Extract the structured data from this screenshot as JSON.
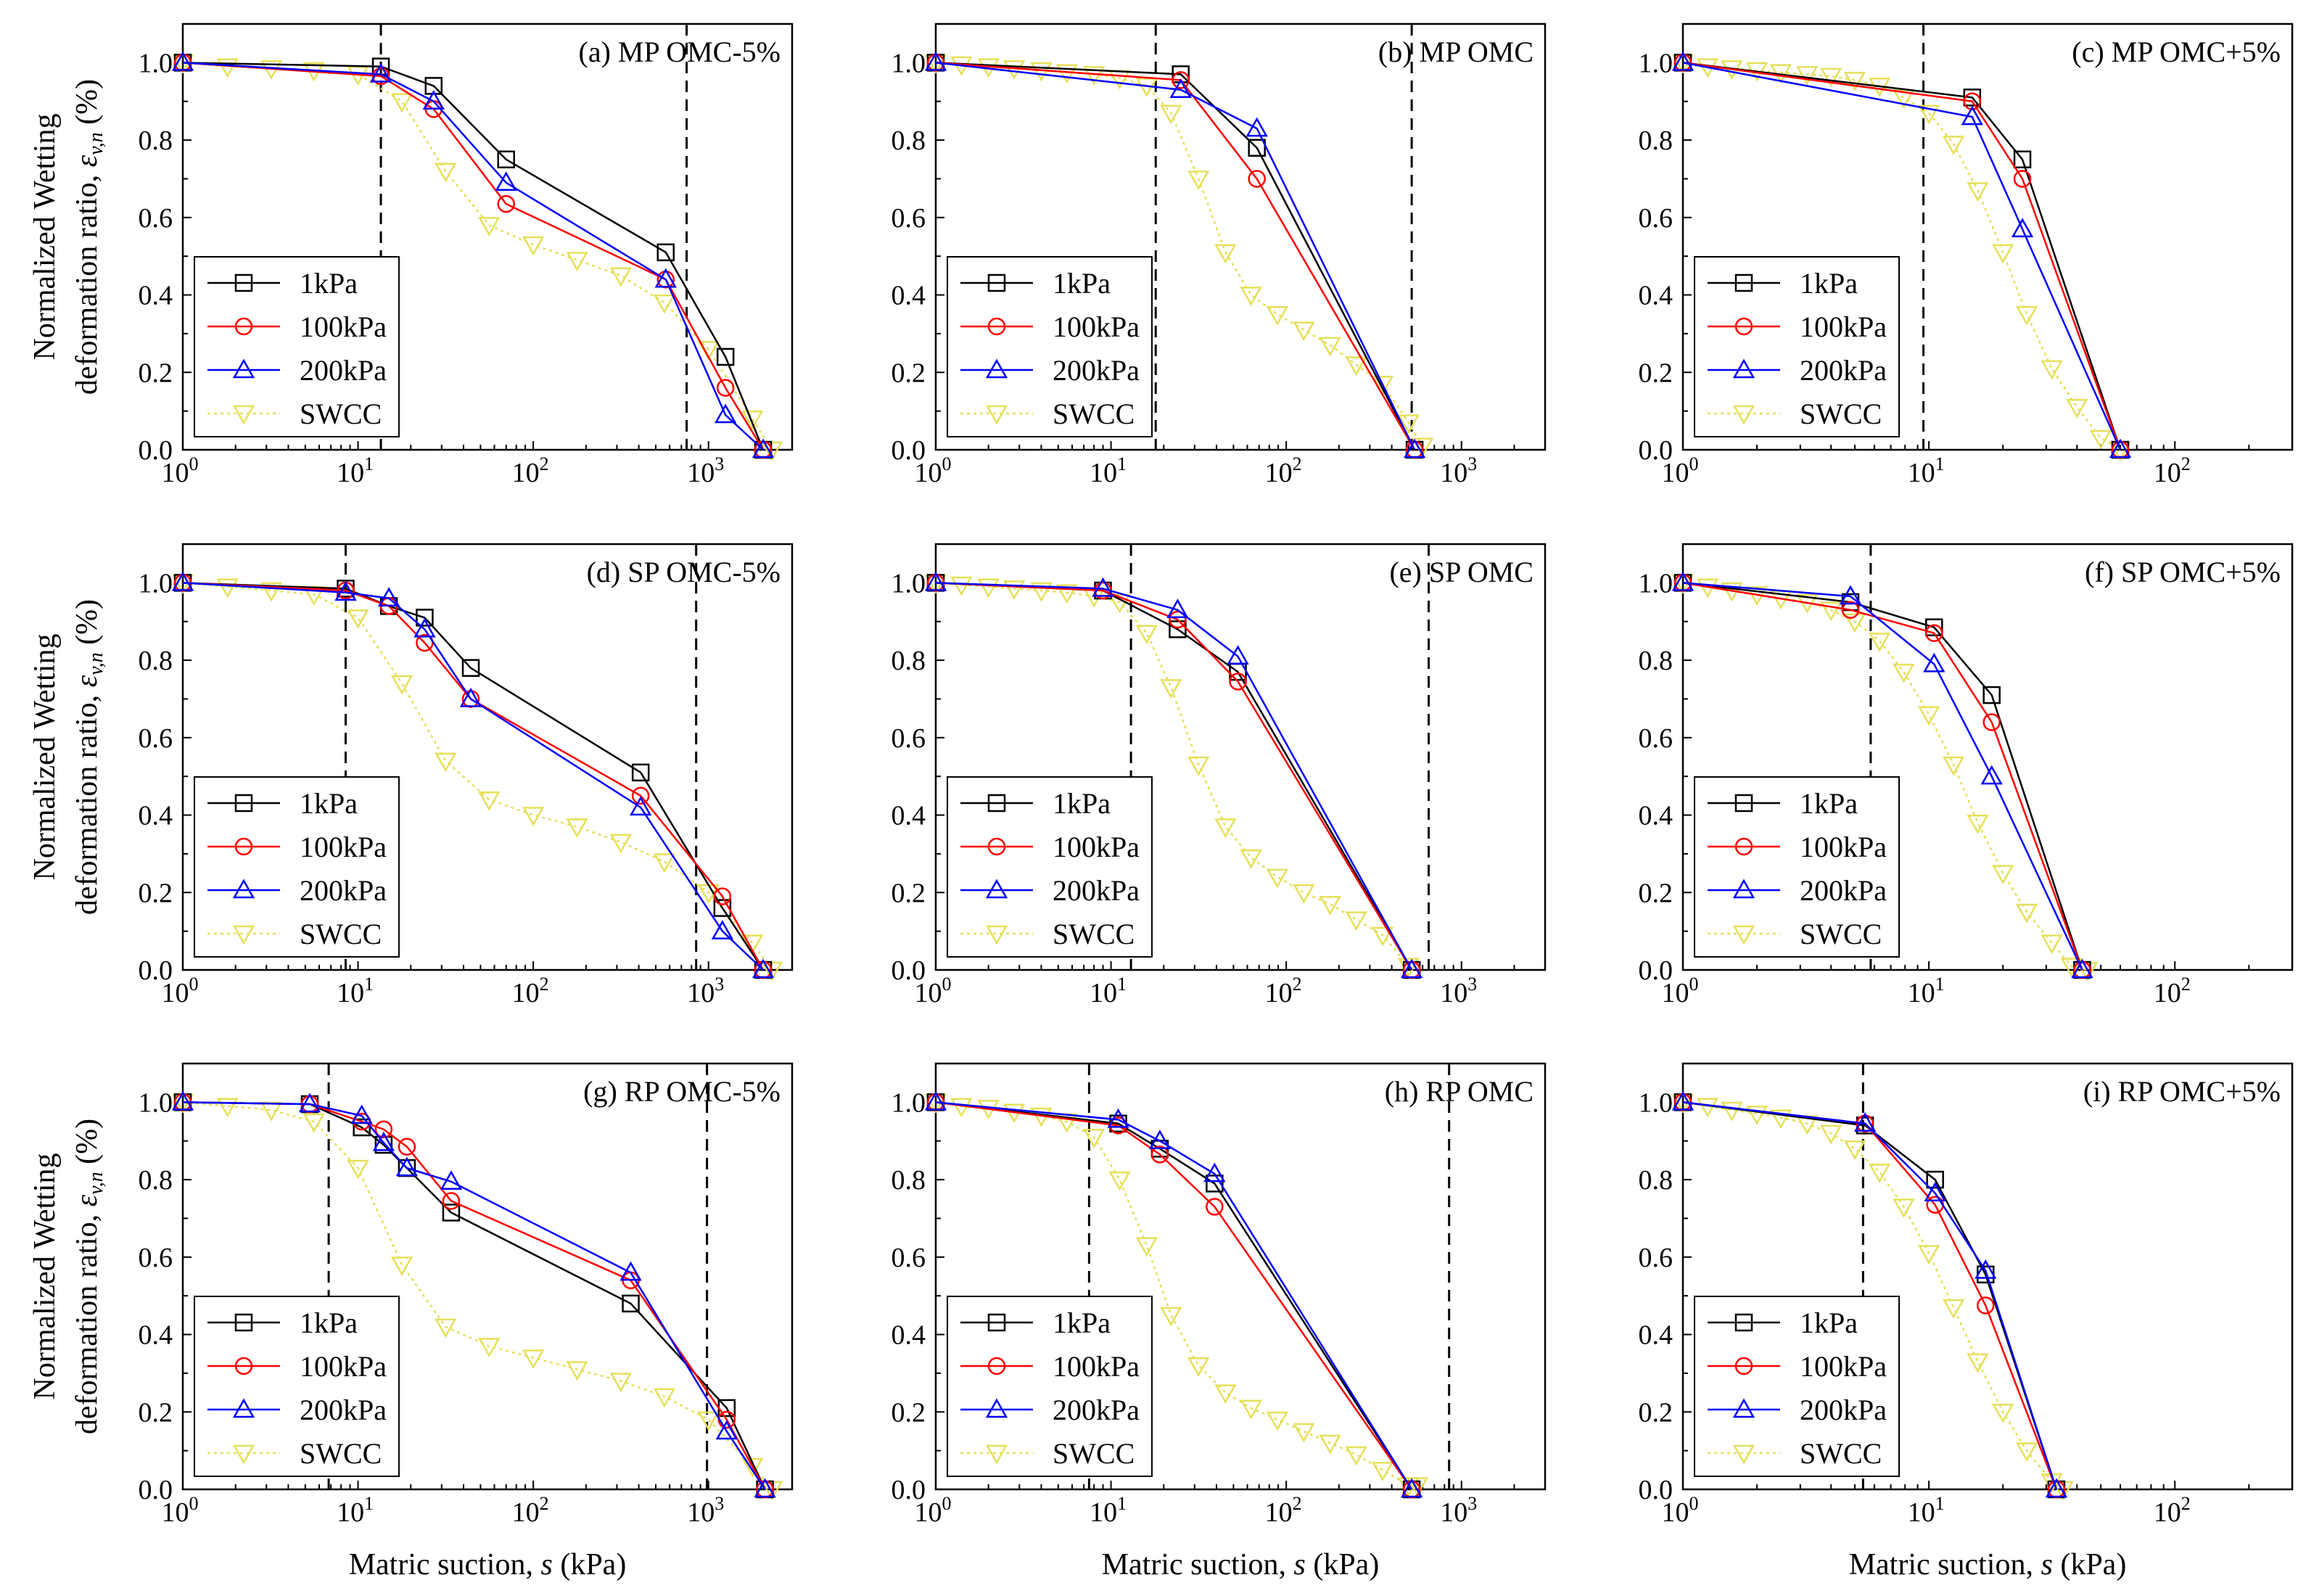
{
  "figure": {
    "ylabel_line1": "Normalized Wetting",
    "ylabel_line2_prefix": "deformation ratio, ",
    "ylabel_symbol": "ε",
    "ylabel_subscript": "v,n",
    "ylabel_unit": " (%)",
    "xlabel_prefix": "Matric suction, ",
    "xlabel_symbol": "s",
    "xlabel_unit": " (kPa)"
  },
  "styles": {
    "1kPa": {
      "color": "#000000",
      "marker": "square",
      "dash": "none"
    },
    "100kPa": {
      "color": "#ff0000",
      "marker": "circle",
      "dash": "none"
    },
    "200kPa": {
      "color": "#0000ff",
      "marker": "triangle-up",
      "dash": "none"
    },
    "SWCC": {
      "color": "#e6e05a",
      "marker": "triangle-down",
      "dash": "dotted"
    }
  },
  "legend_labels": [
    "1kPa",
    "100kPa",
    "200kPa",
    "SWCC"
  ],
  "chart_data": [
    {
      "id": "a",
      "type": "line",
      "title": "(a) MP OMC-5%",
      "xscale": "log",
      "xlim": [
        1,
        3000
      ],
      "xmax_exp": 3,
      "ylim": [
        0,
        1.1
      ],
      "yticks": [
        "0.0",
        "0.2",
        "0.4",
        "0.6",
        "0.8",
        "1.0"
      ],
      "vlines": [
        13.5,
        750
      ],
      "series": [
        {
          "name": "1kPa",
          "x": [
            1,
            13.5,
            27,
            70,
            570,
            1250,
            2050
          ],
          "y": [
            1.0,
            0.99,
            0.94,
            0.75,
            0.51,
            0.24,
            0.0
          ]
        },
        {
          "name": "100kPa",
          "x": [
            1,
            13.5,
            27,
            70,
            570,
            1250,
            2050
          ],
          "y": [
            1.0,
            0.965,
            0.88,
            0.635,
            0.44,
            0.16,
            0.0
          ]
        },
        {
          "name": "200kPa",
          "x": [
            1,
            13.5,
            27,
            70,
            570,
            1250,
            2050
          ],
          "y": [
            1.0,
            0.97,
            0.9,
            0.69,
            0.44,
            0.09,
            0.0
          ]
        },
        {
          "name": "SWCC",
          "x": [
            1,
            1.8,
            3.2,
            5.6,
            10,
            17.8,
            31.6,
            56,
            100,
            178,
            316,
            560,
            1000,
            1780,
            2300
          ],
          "y": [
            1.0,
            0.99,
            0.985,
            0.98,
            0.97,
            0.9,
            0.72,
            0.58,
            0.53,
            0.49,
            0.45,
            0.38,
            0.26,
            0.08,
            0.0
          ]
        }
      ]
    },
    {
      "id": "b",
      "type": "line",
      "title": "(b) MP OMC",
      "xscale": "log",
      "xlim": [
        1,
        3000
      ],
      "xmax_exp": 3,
      "ylim": [
        0,
        1.1
      ],
      "yticks": [
        "0.0",
        "0.2",
        "0.4",
        "0.6",
        "0.8",
        "1.0"
      ],
      "vlines": [
        18,
        520
      ],
      "series": [
        {
          "name": "1kPa",
          "x": [
            1,
            25,
            68,
            540
          ],
          "y": [
            1.0,
            0.97,
            0.78,
            0.0
          ]
        },
        {
          "name": "100kPa",
          "x": [
            1,
            25,
            68,
            540
          ],
          "y": [
            1.0,
            0.955,
            0.7,
            0.0
          ]
        },
        {
          "name": "200kPa",
          "x": [
            1,
            25,
            68,
            540
          ],
          "y": [
            1.0,
            0.93,
            0.83,
            0.0
          ]
        },
        {
          "name": "SWCC",
          "x": [
            1,
            1.4,
            2,
            2.8,
            4,
            5.6,
            8,
            11.2,
            16,
            22,
            31.6,
            45,
            63,
            89,
            126,
            178,
            251,
            355,
            500,
            600
          ],
          "y": [
            1.0,
            0.995,
            0.99,
            0.985,
            0.98,
            0.975,
            0.97,
            0.96,
            0.94,
            0.87,
            0.7,
            0.51,
            0.4,
            0.35,
            0.31,
            0.27,
            0.22,
            0.17,
            0.07,
            0.01
          ]
        }
      ]
    },
    {
      "id": "c",
      "type": "line",
      "title": "(c) MP OMC+5%",
      "xscale": "log",
      "xlim": [
        1,
        300
      ],
      "xmax_exp": 2,
      "ylim": [
        0,
        1.1
      ],
      "yticks": [
        "0.0",
        "0.2",
        "0.4",
        "0.6",
        "0.8",
        "1.0"
      ],
      "vlines": [
        9.5
      ],
      "series": [
        {
          "name": "1kPa",
          "x": [
            1,
            15,
            24,
            60
          ],
          "y": [
            1.0,
            0.91,
            0.75,
            0.0
          ]
        },
        {
          "name": "100kPa",
          "x": [
            1,
            15,
            24,
            60
          ],
          "y": [
            1.0,
            0.9,
            0.7,
            0.0
          ]
        },
        {
          "name": "200kPa",
          "x": [
            1,
            15,
            24,
            60
          ],
          "y": [
            1.0,
            0.86,
            0.57,
            0.0
          ]
        },
        {
          "name": "SWCC",
          "x": [
            1,
            1.26,
            1.58,
            2,
            2.5,
            3.2,
            4,
            5,
            6.3,
            7.9,
            10,
            12.6,
            15.8,
            20,
            25,
            31.6,
            40,
            50,
            60
          ],
          "y": [
            1.0,
            0.99,
            0.985,
            0.98,
            0.975,
            0.97,
            0.965,
            0.955,
            0.94,
            0.91,
            0.87,
            0.79,
            0.67,
            0.51,
            0.35,
            0.21,
            0.11,
            0.03,
            0.0
          ]
        }
      ]
    },
    {
      "id": "d",
      "type": "line",
      "title": "(d) SP OMC-5%",
      "xscale": "log",
      "xlim": [
        1,
        3000
      ],
      "xmax_exp": 3,
      "ylim": [
        0,
        1.1
      ],
      "yticks": [
        "0.0",
        "0.2",
        "0.4",
        "0.6",
        "0.8",
        "1.0"
      ],
      "vlines": [
        8.5,
        850
      ],
      "series": [
        {
          "name": "1kPa",
          "x": [
            1,
            8.5,
            15,
            24,
            44,
            410,
            1200,
            2050
          ],
          "y": [
            1.0,
            0.985,
            0.94,
            0.91,
            0.78,
            0.51,
            0.16,
            0.0
          ]
        },
        {
          "name": "100kPa",
          "x": [
            1,
            8.5,
            15,
            24,
            44,
            410,
            1200,
            2050
          ],
          "y": [
            1.0,
            0.98,
            0.94,
            0.845,
            0.7,
            0.45,
            0.19,
            0.0
          ]
        },
        {
          "name": "200kPa",
          "x": [
            1,
            8.5,
            15,
            24,
            44,
            410,
            1200,
            2050
          ],
          "y": [
            1.0,
            0.975,
            0.96,
            0.88,
            0.7,
            0.42,
            0.1,
            0.0
          ]
        },
        {
          "name": "SWCC",
          "x": [
            1,
            1.8,
            3.2,
            5.6,
            10,
            17.8,
            31.6,
            56,
            100,
            178,
            316,
            560,
            1000,
            1780,
            2300
          ],
          "y": [
            1.0,
            0.99,
            0.98,
            0.97,
            0.91,
            0.74,
            0.54,
            0.44,
            0.4,
            0.37,
            0.33,
            0.28,
            0.2,
            0.07,
            0.0
          ]
        }
      ]
    },
    {
      "id": "e",
      "type": "line",
      "title": "(e) SP OMC",
      "xscale": "log",
      "xlim": [
        1,
        3000
      ],
      "xmax_exp": 3,
      "ylim": [
        0,
        1.1
      ],
      "yticks": [
        "0.0",
        "0.2",
        "0.4",
        "0.6",
        "0.8",
        "1.0"
      ],
      "vlines": [
        13,
        650
      ],
      "series": [
        {
          "name": "1kPa",
          "x": [
            1,
            9,
            24,
            53,
            520
          ],
          "y": [
            1.0,
            0.98,
            0.88,
            0.77,
            0.0
          ]
        },
        {
          "name": "100kPa",
          "x": [
            1,
            9,
            24,
            53,
            520
          ],
          "y": [
            1.0,
            0.98,
            0.905,
            0.745,
            0.0
          ]
        },
        {
          "name": "200kPa",
          "x": [
            1,
            9,
            24,
            53,
            520
          ],
          "y": [
            1.0,
            0.985,
            0.93,
            0.81,
            0.0
          ]
        },
        {
          "name": "SWCC",
          "x": [
            1,
            1.4,
            2,
            2.8,
            4,
            5.6,
            8,
            11.2,
            16,
            22,
            31.6,
            45,
            63,
            89,
            126,
            178,
            251,
            355,
            500
          ],
          "y": [
            1.0,
            0.995,
            0.99,
            0.985,
            0.98,
            0.975,
            0.965,
            0.95,
            0.87,
            0.73,
            0.53,
            0.37,
            0.29,
            0.24,
            0.2,
            0.17,
            0.13,
            0.09,
            0.01
          ]
        }
      ]
    },
    {
      "id": "f",
      "type": "line",
      "title": "(f) SP OMC+5%",
      "xscale": "log",
      "xlim": [
        1,
        300
      ],
      "xmax_exp": 2,
      "ylim": [
        0,
        1.1
      ],
      "yticks": [
        "0.0",
        "0.2",
        "0.4",
        "0.6",
        "0.8",
        "1.0"
      ],
      "vlines": [
        5.8
      ],
      "series": [
        {
          "name": "1kPa",
          "x": [
            1,
            4.8,
            10.5,
            18,
            42
          ],
          "y": [
            1.0,
            0.95,
            0.885,
            0.71,
            0.0
          ]
        },
        {
          "name": "100kPa",
          "x": [
            1,
            4.8,
            10.5,
            18,
            42
          ],
          "y": [
            1.0,
            0.93,
            0.87,
            0.64,
            0.0
          ]
        },
        {
          "name": "200kPa",
          "x": [
            1,
            4.8,
            10.5,
            18,
            42
          ],
          "y": [
            1.0,
            0.965,
            0.79,
            0.5,
            0.0
          ]
        },
        {
          "name": "SWCC",
          "x": [
            1,
            1.26,
            1.58,
            2,
            2.5,
            3.2,
            4,
            5,
            6.3,
            7.9,
            10,
            12.6,
            15.8,
            20,
            25,
            31.6,
            38,
            44
          ],
          "y": [
            1.0,
            0.99,
            0.98,
            0.97,
            0.96,
            0.95,
            0.93,
            0.9,
            0.85,
            0.77,
            0.66,
            0.53,
            0.38,
            0.25,
            0.15,
            0.07,
            0.01,
            0.0
          ]
        }
      ]
    },
    {
      "id": "g",
      "type": "line",
      "title": "(g) RP OMC-5%",
      "xscale": "log",
      "xlim": [
        1,
        3000
      ],
      "xmax_exp": 3,
      "ylim": [
        0,
        1.1
      ],
      "yticks": [
        "0.0",
        "0.2",
        "0.4",
        "0.6",
        "0.8",
        "1.0"
      ],
      "vlines": [
        6.8,
        980
      ],
      "series": [
        {
          "name": "1kPa",
          "x": [
            1,
            5.3,
            10.5,
            14,
            19,
            34,
            360,
            1270,
            2100
          ],
          "y": [
            1.0,
            0.995,
            0.935,
            0.89,
            0.83,
            0.715,
            0.48,
            0.21,
            0.0
          ]
        },
        {
          "name": "100kPa",
          "x": [
            1,
            5.3,
            10.5,
            14,
            19,
            34,
            360,
            1270,
            2100
          ],
          "y": [
            1.0,
            0.995,
            0.95,
            0.93,
            0.885,
            0.745,
            0.54,
            0.18,
            0.0
          ]
        },
        {
          "name": "200kPa",
          "x": [
            1,
            5.3,
            10.5,
            14,
            19,
            34,
            360,
            1270,
            2100
          ],
          "y": [
            1.0,
            0.995,
            0.965,
            0.895,
            0.83,
            0.795,
            0.56,
            0.15,
            0.0
          ]
        },
        {
          "name": "SWCC",
          "x": [
            1,
            1.8,
            3.2,
            5.6,
            10,
            17.8,
            31.6,
            56,
            100,
            178,
            316,
            560,
            1000,
            1780,
            2300
          ],
          "y": [
            1.0,
            0.99,
            0.98,
            0.95,
            0.83,
            0.58,
            0.42,
            0.37,
            0.34,
            0.31,
            0.28,
            0.24,
            0.18,
            0.06,
            0.0
          ]
        }
      ]
    },
    {
      "id": "h",
      "type": "line",
      "title": "(h) RP OMC",
      "xscale": "log",
      "xlim": [
        1,
        3000
      ],
      "xmax_exp": 3,
      "ylim": [
        0,
        1.1
      ],
      "yticks": [
        "0.0",
        "0.2",
        "0.4",
        "0.6",
        "0.8",
        "1.0"
      ],
      "vlines": [
        7.5,
        850
      ],
      "series": [
        {
          "name": "1kPa",
          "x": [
            1,
            11,
            19,
            39,
            520
          ],
          "y": [
            1.0,
            0.945,
            0.88,
            0.79,
            0.0
          ]
        },
        {
          "name": "100kPa",
          "x": [
            1,
            11,
            19,
            39,
            520
          ],
          "y": [
            1.0,
            0.94,
            0.865,
            0.73,
            0.0
          ]
        },
        {
          "name": "200kPa",
          "x": [
            1,
            11,
            19,
            39,
            520
          ],
          "y": [
            1.0,
            0.955,
            0.9,
            0.815,
            0.0
          ]
        },
        {
          "name": "SWCC",
          "x": [
            1,
            1.4,
            2,
            2.8,
            4,
            5.6,
            8,
            11.2,
            16,
            22,
            31.6,
            45,
            63,
            89,
            126,
            178,
            251,
            355,
            500,
            560
          ],
          "y": [
            1.0,
            0.99,
            0.985,
            0.975,
            0.965,
            0.95,
            0.91,
            0.8,
            0.63,
            0.45,
            0.32,
            0.25,
            0.21,
            0.18,
            0.15,
            0.12,
            0.09,
            0.05,
            0.01,
            0.01
          ]
        }
      ]
    },
    {
      "id": "i",
      "type": "line",
      "title": "(i) RP OMC+5%",
      "xscale": "log",
      "xlim": [
        1,
        300
      ],
      "xmax_exp": 2,
      "ylim": [
        0,
        1.1
      ],
      "yticks": [
        "0.0",
        "0.2",
        "0.4",
        "0.6",
        "0.8",
        "1.0"
      ],
      "vlines": [
        5.4
      ],
      "series": [
        {
          "name": "1kPa",
          "x": [
            1,
            5.5,
            10.6,
            17,
            33
          ],
          "y": [
            1.0,
            0.94,
            0.8,
            0.555,
            0.0
          ]
        },
        {
          "name": "100kPa",
          "x": [
            1,
            5.5,
            10.6,
            17,
            33
          ],
          "y": [
            1.0,
            0.945,
            0.735,
            0.475,
            0.0
          ]
        },
        {
          "name": "200kPa",
          "x": [
            1,
            5.5,
            10.6,
            17,
            33
          ],
          "y": [
            1.0,
            0.945,
            0.765,
            0.565,
            0.0
          ]
        },
        {
          "name": "SWCC",
          "x": [
            1,
            1.26,
            1.58,
            2,
            2.5,
            3.2,
            4,
            5,
            6.3,
            7.9,
            10,
            12.6,
            15.8,
            20,
            25,
            31.6,
            35
          ],
          "y": [
            1.0,
            0.99,
            0.98,
            0.97,
            0.96,
            0.945,
            0.92,
            0.88,
            0.82,
            0.73,
            0.61,
            0.47,
            0.33,
            0.2,
            0.1,
            0.02,
            0.0
          ]
        }
      ]
    }
  ]
}
